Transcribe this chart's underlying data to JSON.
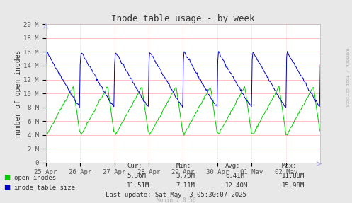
{
  "title": "Inode table usage - by week",
  "ylabel": "number of open inodes",
  "bg_color": "#e8e8e8",
  "plot_bg_color": "#ffffff",
  "title_color": "#333333",
  "right_label": "RRDTOOL / TOBI OETIKER",
  "munin_label": "Munin 2.0.56",
  "xticklabels": [
    "25 Apr",
    "26 Apr",
    "27 Apr",
    "28 Apr",
    "29 Apr",
    "30 Apr",
    "01 May",
    "02 May"
  ],
  "ytick_labels": [
    "0",
    "2 M",
    "4 M",
    "6 M",
    "8 M",
    "10 M",
    "12 M",
    "14 M",
    "16 M",
    "18 M",
    "20 M"
  ],
  "ylim": [
    0,
    20000000
  ],
  "stats_open": [
    "5.36M",
    "3.73M",
    "6.41M",
    "11.88M"
  ],
  "stats_table": [
    "11.51M",
    "7.11M",
    "12.40M",
    "15.98M"
  ],
  "last_update": "Last update: Sat May  3 05:30:07 2025",
  "line_color_green": "#00cc00",
  "line_color_blue": "#0000cc",
  "grid_color": "#ffaaaa"
}
